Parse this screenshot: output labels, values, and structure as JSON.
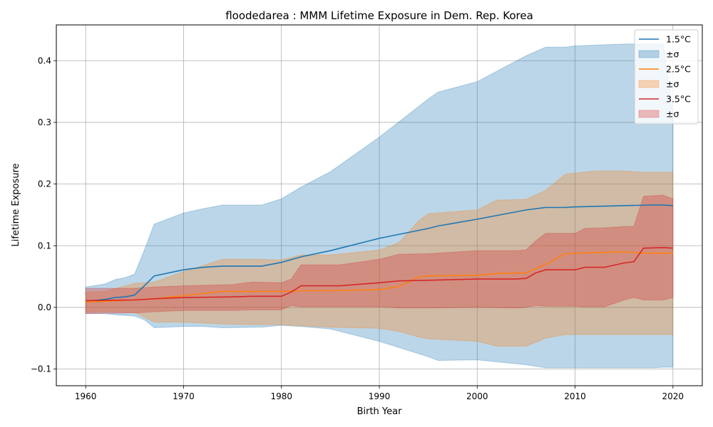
{
  "chart_data": {
    "type": "area",
    "title": "floodedarea : MMM Lifetime Exposure in Dem. Rep. Korea",
    "xlabel": "Birth Year",
    "ylabel": "Lifetime Exposure",
    "xlim": [
      1957,
      2023
    ],
    "ylim": [
      -0.127,
      0.458
    ],
    "xticks": [
      1960,
      1970,
      1980,
      1990,
      2000,
      2010,
      2020
    ],
    "xtick_labels": [
      "1960",
      "1970",
      "1980",
      "1990",
      "2000",
      "2010",
      "2020"
    ],
    "yticks": [
      -0.1,
      0.0,
      0.1,
      0.2,
      0.3,
      0.4
    ],
    "ytick_labels": [
      "−0.1",
      "0.0",
      "0.1",
      "0.2",
      "0.3",
      "0.4"
    ],
    "grid": true,
    "legend_position": "top-right",
    "series": [
      {
        "name": "1.5°C",
        "band_label": "±σ",
        "color": "#1f77b4",
        "x": [
          1960,
          1962,
          1963,
          1964,
          1965,
          1966,
          1967,
          1970,
          1972,
          1974,
          1978,
          1980,
          1982,
          1985,
          1990,
          1995,
          1996,
          2000,
          2005,
          2007,
          2009,
          2010,
          2015,
          2018,
          2019,
          2020
        ],
        "mean": [
          0.01,
          0.013,
          0.016,
          0.017,
          0.02,
          0.035,
          0.051,
          0.061,
          0.065,
          0.067,
          0.067,
          0.073,
          0.082,
          0.092,
          0.112,
          0.128,
          0.132,
          0.143,
          0.158,
          0.162,
          0.162,
          0.163,
          0.165,
          0.166,
          0.166,
          0.165
        ],
        "upper": [
          0.033,
          0.038,
          0.045,
          0.048,
          0.054,
          0.093,
          0.135,
          0.153,
          0.16,
          0.166,
          0.166,
          0.176,
          0.195,
          0.22,
          0.276,
          0.338,
          0.349,
          0.366,
          0.408,
          0.422,
          0.422,
          0.424,
          0.427,
          0.427,
          0.427,
          0.316
        ],
        "lower": [
          -0.01,
          -0.01,
          -0.012,
          -0.013,
          -0.014,
          -0.02,
          -0.033,
          -0.031,
          -0.031,
          -0.033,
          -0.032,
          -0.029,
          -0.031,
          -0.035,
          -0.055,
          -0.08,
          -0.086,
          -0.085,
          -0.093,
          -0.098,
          -0.098,
          -0.098,
          -0.098,
          -0.098,
          -0.097,
          -0.097
        ]
      },
      {
        "name": "2.5°C",
        "band_label": "±σ",
        "color": "#ff7f0e",
        "x": [
          1960,
          1962,
          1965,
          1967,
          1970,
          1974,
          1977,
          1980,
          1982,
          1985,
          1990,
          1992,
          1994,
          1995,
          2000,
          2002,
          2005,
          2007,
          2009,
          2012,
          2015,
          2017,
          2020
        ],
        "mean": [
          0.009,
          0.01,
          0.012,
          0.014,
          0.019,
          0.026,
          0.026,
          0.026,
          0.027,
          0.027,
          0.029,
          0.034,
          0.049,
          0.051,
          0.052,
          0.055,
          0.056,
          0.07,
          0.087,
          0.089,
          0.09,
          0.088,
          0.088
        ],
        "upper": [
          0.025,
          0.026,
          0.039,
          0.041,
          0.058,
          0.078,
          0.078,
          0.077,
          0.085,
          0.085,
          0.093,
          0.105,
          0.14,
          0.152,
          0.158,
          0.174,
          0.175,
          0.19,
          0.216,
          0.221,
          0.221,
          0.219,
          0.219
        ],
        "lower": [
          -0.008,
          -0.007,
          -0.008,
          -0.024,
          -0.024,
          -0.027,
          -0.028,
          -0.028,
          -0.03,
          -0.032,
          -0.034,
          -0.039,
          -0.048,
          -0.051,
          -0.055,
          -0.063,
          -0.063,
          -0.05,
          -0.044,
          -0.044,
          -0.044,
          -0.044,
          -0.044
        ]
      },
      {
        "name": "3.5°C",
        "band_label": "±σ",
        "color": "#d62728",
        "x": [
          1960,
          1965,
          1967,
          1970,
          1975,
          1977,
          1980,
          1981,
          1982,
          1986,
          1990,
          1992,
          1995,
          2000,
          2004,
          2005,
          2006,
          2007,
          2010,
          2011,
          2013,
          2015,
          2016,
          2017,
          2019,
          2020
        ],
        "mean": [
          0.011,
          0.012,
          0.014,
          0.016,
          0.017,
          0.018,
          0.018,
          0.025,
          0.035,
          0.035,
          0.04,
          0.043,
          0.044,
          0.046,
          0.046,
          0.047,
          0.056,
          0.061,
          0.061,
          0.065,
          0.065,
          0.072,
          0.074,
          0.096,
          0.097,
          0.096
        ],
        "upper": [
          0.031,
          0.031,
          0.033,
          0.035,
          0.037,
          0.041,
          0.04,
          0.046,
          0.069,
          0.069,
          0.078,
          0.086,
          0.087,
          0.092,
          0.092,
          0.093,
          0.108,
          0.12,
          0.12,
          0.128,
          0.129,
          0.131,
          0.131,
          0.18,
          0.182,
          0.176
        ],
        "lower": [
          -0.01,
          -0.009,
          -0.007,
          -0.005,
          -0.005,
          -0.004,
          -0.004,
          0.003,
          0.001,
          0.001,
          0.001,
          -0.001,
          -0.001,
          0.0,
          -0.001,
          0.0,
          0.003,
          0.002,
          0.002,
          0.001,
          0.001,
          0.012,
          0.016,
          0.012,
          0.012,
          0.016
        ]
      }
    ]
  }
}
